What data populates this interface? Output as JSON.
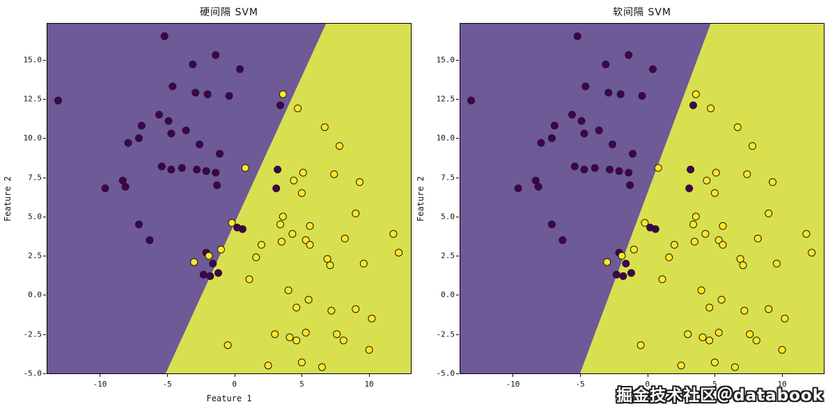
{
  "watermark": {
    "text": "掘金技术社区＠databook"
  },
  "chart_data": [
    {
      "type": "scatter",
      "title": "硬间隔 SVM",
      "xlabel": "Feature 1",
      "ylabel": "Feature 2",
      "xlim": [
        -13.9,
        13.1
      ],
      "ylim": [
        -5.0,
        17.3
      ],
      "grid": false,
      "legend": "none",
      "xtick_values": [
        -10,
        -5,
        0,
        5,
        10
      ],
      "xtick_labels": [
        "-10",
        "-5",
        "0",
        "5",
        "10"
      ],
      "ytick_values": [
        -5.0,
        -2.5,
        0.0,
        2.5,
        5.0,
        7.5,
        10.0,
        12.5,
        15.0
      ],
      "ytick_labels": [
        "-5.0",
        "-2.5",
        "0.0",
        "2.5",
        "5.0",
        "7.5",
        "10.0",
        "12.5",
        "15.0"
      ],
      "region_colors": {
        "left": "#6e5a96",
        "right": "#d8e04f"
      },
      "boundary": {
        "x_at_ymin": -5.1,
        "x_at_ymax": 6.8
      },
      "series": [
        {
          "name": "class-0",
          "color": "#440154",
          "edge": "#1a1a1a",
          "points": [
            [
              -13.1,
              12.4
            ],
            [
              -5.2,
              16.5
            ],
            [
              -3.1,
              14.7
            ],
            [
              -1.4,
              15.3
            ],
            [
              0.4,
              14.4
            ],
            [
              -4.6,
              13.3
            ],
            [
              -2.9,
              12.9
            ],
            [
              -2.0,
              12.8
            ],
            [
              -0.4,
              12.7
            ],
            [
              3.4,
              12.1
            ],
            [
              -5.6,
              11.5
            ],
            [
              -4.9,
              11.1
            ],
            [
              -6.9,
              10.8
            ],
            [
              -3.6,
              10.5
            ],
            [
              -4.7,
              10.3
            ],
            [
              -7.1,
              10.0
            ],
            [
              -7.9,
              9.7
            ],
            [
              -2.6,
              9.6
            ],
            [
              -1.1,
              9.0
            ],
            [
              -5.4,
              8.2
            ],
            [
              -4.7,
              8.0
            ],
            [
              -3.9,
              8.1
            ],
            [
              -2.8,
              8.0
            ],
            [
              -2.1,
              7.9
            ],
            [
              -1.4,
              7.8
            ],
            [
              -8.3,
              7.3
            ],
            [
              -9.6,
              6.8
            ],
            [
              -8.1,
              6.9
            ],
            [
              -1.3,
              7.0
            ],
            [
              3.2,
              8.0
            ],
            [
              3.1,
              6.8
            ],
            [
              -7.1,
              4.5
            ],
            [
              -6.3,
              3.5
            ],
            [
              0.2,
              4.3
            ],
            [
              0.6,
              4.2
            ],
            [
              -2.1,
              2.7
            ],
            [
              -1.6,
              2.0
            ],
            [
              -2.3,
              1.3
            ],
            [
              -1.8,
              1.2
            ],
            [
              -1.2,
              1.4
            ]
          ]
        },
        {
          "name": "class-1",
          "color": "#fde725",
          "edge": "#1a1a1a",
          "points": [
            [
              3.6,
              12.8
            ],
            [
              4.7,
              11.9
            ],
            [
              6.7,
              10.7
            ],
            [
              7.8,
              9.5
            ],
            [
              0.8,
              8.1
            ],
            [
              5.1,
              7.8
            ],
            [
              4.4,
              7.3
            ],
            [
              7.4,
              7.7
            ],
            [
              9.3,
              7.2
            ],
            [
              5.0,
              6.5
            ],
            [
              9.0,
              5.2
            ],
            [
              3.6,
              5.0
            ],
            [
              -0.2,
              4.6
            ],
            [
              3.4,
              4.5
            ],
            [
              5.6,
              4.4
            ],
            [
              4.3,
              3.9
            ],
            [
              3.5,
              3.4
            ],
            [
              5.3,
              3.5
            ],
            [
              5.6,
              3.2
            ],
            [
              8.2,
              3.6
            ],
            [
              11.8,
              3.9
            ],
            [
              12.2,
              2.7
            ],
            [
              2.0,
              3.2
            ],
            [
              -1.0,
              2.9
            ],
            [
              -1.9,
              2.5
            ],
            [
              -3.0,
              2.1
            ],
            [
              1.6,
              2.4
            ],
            [
              6.9,
              2.3
            ],
            [
              7.1,
              1.9
            ],
            [
              9.6,
              2.0
            ],
            [
              1.1,
              1.0
            ],
            [
              4.0,
              0.3
            ],
            [
              5.5,
              -0.3
            ],
            [
              4.6,
              -0.8
            ],
            [
              7.2,
              -1.0
            ],
            [
              9.0,
              -0.9
            ],
            [
              10.2,
              -1.5
            ],
            [
              -0.5,
              -3.2
            ],
            [
              3.0,
              -2.5
            ],
            [
              4.1,
              -2.7
            ],
            [
              4.6,
              -2.9
            ],
            [
              5.3,
              -2.4
            ],
            [
              7.6,
              -2.5
            ],
            [
              8.1,
              -2.9
            ],
            [
              10.0,
              -3.5
            ],
            [
              2.5,
              -4.5
            ],
            [
              5.0,
              -4.3
            ],
            [
              6.5,
              -4.6
            ]
          ]
        }
      ]
    },
    {
      "type": "scatter",
      "title": "软间隔 SVM",
      "xlabel": "Feature 1",
      "ylabel": "Feature 2",
      "xlim": [
        -13.9,
        13.1
      ],
      "ylim": [
        -5.0,
        17.3
      ],
      "grid": false,
      "legend": "none",
      "xtick_values": [
        -10,
        -5,
        0,
        5,
        10
      ],
      "xtick_labels": [
        "-10",
        "-5",
        "0",
        "5",
        "10"
      ],
      "ytick_values": [
        -5.0,
        -2.5,
        0.0,
        2.5,
        5.0,
        7.5,
        10.0,
        12.5,
        15.0
      ],
      "ytick_labels": [
        "-5.0",
        "-2.5",
        "0.0",
        "2.5",
        "5.0",
        "7.5",
        "10.0",
        "12.5",
        "15.0"
      ],
      "region_colors": {
        "left": "#6e5a96",
        "right": "#d8e04f"
      },
      "boundary": {
        "x_at_ymin": -5.0,
        "x_at_ymax": 4.7
      },
      "series": [
        {
          "name": "class-0",
          "color": "#440154",
          "edge": "#1a1a1a",
          "points": [
            [
              -13.1,
              12.4
            ],
            [
              -5.2,
              16.5
            ],
            [
              -3.1,
              14.7
            ],
            [
              -1.4,
              15.3
            ],
            [
              0.4,
              14.4
            ],
            [
              -4.6,
              13.3
            ],
            [
              -2.9,
              12.9
            ],
            [
              -2.0,
              12.8
            ],
            [
              -0.4,
              12.7
            ],
            [
              3.4,
              12.1
            ],
            [
              -5.6,
              11.5
            ],
            [
              -4.9,
              11.1
            ],
            [
              -6.9,
              10.8
            ],
            [
              -3.6,
              10.5
            ],
            [
              -4.7,
              10.3
            ],
            [
              -7.1,
              10.0
            ],
            [
              -7.9,
              9.7
            ],
            [
              -2.6,
              9.6
            ],
            [
              -1.1,
              9.0
            ],
            [
              -5.4,
              8.2
            ],
            [
              -4.7,
              8.0
            ],
            [
              -3.9,
              8.1
            ],
            [
              -2.8,
              8.0
            ],
            [
              -2.1,
              7.9
            ],
            [
              -1.4,
              7.8
            ],
            [
              -8.3,
              7.3
            ],
            [
              -9.6,
              6.8
            ],
            [
              -8.1,
              6.9
            ],
            [
              -1.3,
              7.0
            ],
            [
              3.2,
              8.0
            ],
            [
              3.1,
              6.8
            ],
            [
              -7.1,
              4.5
            ],
            [
              -6.3,
              3.5
            ],
            [
              0.2,
              4.3
            ],
            [
              0.6,
              4.2
            ],
            [
              -2.1,
              2.7
            ],
            [
              -1.6,
              2.0
            ],
            [
              -2.3,
              1.3
            ],
            [
              -1.8,
              1.2
            ],
            [
              -1.2,
              1.4
            ]
          ]
        },
        {
          "name": "class-1",
          "color": "#fde725",
          "edge": "#1a1a1a",
          "points": [
            [
              3.6,
              12.8
            ],
            [
              4.7,
              11.9
            ],
            [
              6.7,
              10.7
            ],
            [
              7.8,
              9.5
            ],
            [
              0.8,
              8.1
            ],
            [
              5.1,
              7.8
            ],
            [
              4.4,
              7.3
            ],
            [
              7.4,
              7.7
            ],
            [
              9.3,
              7.2
            ],
            [
              5.0,
              6.5
            ],
            [
              9.0,
              5.2
            ],
            [
              3.6,
              5.0
            ],
            [
              -0.2,
              4.6
            ],
            [
              3.4,
              4.5
            ],
            [
              5.6,
              4.4
            ],
            [
              4.3,
              3.9
            ],
            [
              3.5,
              3.4
            ],
            [
              5.3,
              3.5
            ],
            [
              5.6,
              3.2
            ],
            [
              8.2,
              3.6
            ],
            [
              11.8,
              3.9
            ],
            [
              12.2,
              2.7
            ],
            [
              2.0,
              3.2
            ],
            [
              -1.0,
              2.9
            ],
            [
              -1.9,
              2.5
            ],
            [
              -3.0,
              2.1
            ],
            [
              1.6,
              2.4
            ],
            [
              6.9,
              2.3
            ],
            [
              7.1,
              1.9
            ],
            [
              9.6,
              2.0
            ],
            [
              1.1,
              1.0
            ],
            [
              4.0,
              0.3
            ],
            [
              5.5,
              -0.3
            ],
            [
              4.6,
              -0.8
            ],
            [
              7.2,
              -1.0
            ],
            [
              9.0,
              -0.9
            ],
            [
              10.2,
              -1.5
            ],
            [
              -0.5,
              -3.2
            ],
            [
              3.0,
              -2.5
            ],
            [
              4.1,
              -2.7
            ],
            [
              4.6,
              -2.9
            ],
            [
              5.3,
              -2.4
            ],
            [
              7.6,
              -2.5
            ],
            [
              8.1,
              -2.9
            ],
            [
              10.0,
              -3.5
            ],
            [
              2.5,
              -4.5
            ],
            [
              5.0,
              -4.3
            ],
            [
              6.5,
              -4.6
            ]
          ]
        }
      ]
    }
  ]
}
